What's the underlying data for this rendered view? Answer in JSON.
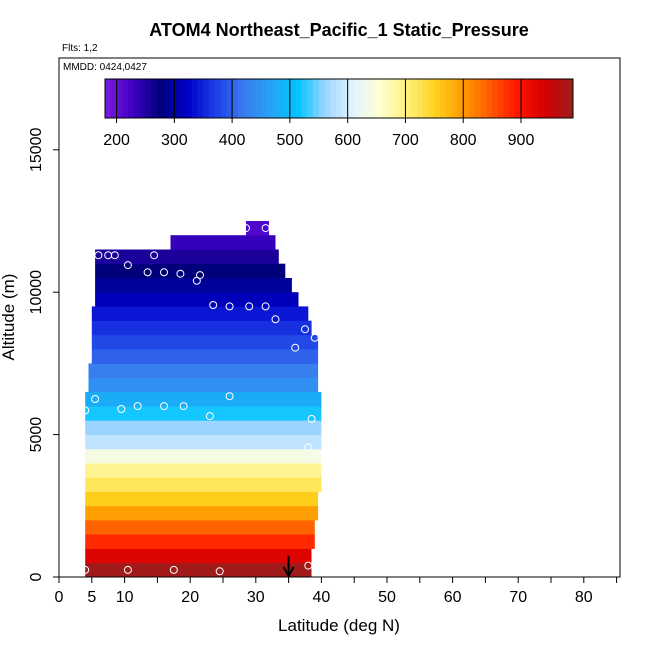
{
  "chart_data": {
    "type": "heatmap",
    "title": "ATOM4 Northeast_Pacific_1 Static_Pressure",
    "flights_note": "Flts: 1,2",
    "date_note": "MMDD: 0424,0427",
    "xlabel": "Latitude (deg N)",
    "ylabel": "Altitude (m)",
    "xlim": [
      0,
      85
    ],
    "ylim": [
      0,
      18000
    ],
    "x_ticks": [
      0,
      5,
      10,
      20,
      30,
      40,
      50,
      60,
      70,
      80
    ],
    "y_ticks": [
      0,
      5000,
      10000,
      15000
    ],
    "y_tick_labels": [
      "0",
      "5000",
      "10000",
      "15000"
    ],
    "colorbar": {
      "range": [
        180,
        990
      ],
      "ticks": [
        200,
        300,
        400,
        500,
        600,
        700,
        800,
        900
      ],
      "colors": [
        "#7a1ce0",
        "#3f00c4",
        "#00007a",
        "#0000c8",
        "#1c3ee6",
        "#3a78ee",
        "#27a2f5",
        "#00c4ff",
        "#9ed4ff",
        "#e2f3ff",
        "#ffffd2",
        "#fff07a",
        "#ffd21e",
        "#ff9a00",
        "#ff5a00",
        "#ff1400",
        "#d20000",
        "#9c1e1e"
      ]
    },
    "bands": [
      {
        "alt": [
          0,
          500
        ],
        "lat": [
          4.0,
          38.5
        ],
        "value": 985
      },
      {
        "alt": [
          500,
          1000
        ],
        "lat": [
          4.0,
          38.5
        ],
        "value": 930
      },
      {
        "alt": [
          1000,
          1500
        ],
        "lat": [
          4.0,
          39.0
        ],
        "value": 880
      },
      {
        "alt": [
          1500,
          2000
        ],
        "lat": [
          4.0,
          39.0
        ],
        "value": 840
      },
      {
        "alt": [
          2000,
          2500
        ],
        "lat": [
          4.0,
          39.5
        ],
        "value": 795
      },
      {
        "alt": [
          2500,
          3000
        ],
        "lat": [
          4.0,
          39.5
        ],
        "value": 755
      },
      {
        "alt": [
          3000,
          3500
        ],
        "lat": [
          4.0,
          40.0
        ],
        "value": 720
      },
      {
        "alt": [
          3500,
          4000
        ],
        "lat": [
          4.0,
          40.0
        ],
        "value": 690
      },
      {
        "alt": [
          4000,
          4500
        ],
        "lat": [
          4.0,
          40.0
        ],
        "value": 640
      },
      {
        "alt": [
          4500,
          5000
        ],
        "lat": [
          4.0,
          40.0
        ],
        "value": 585
      },
      {
        "alt": [
          5000,
          5500
        ],
        "lat": [
          4.0,
          40.0
        ],
        "value": 560
      },
      {
        "alt": [
          5500,
          6000
        ],
        "lat": [
          4.0,
          40.0
        ],
        "value": 520
      },
      {
        "alt": [
          6000,
          6500
        ],
        "lat": [
          4.0,
          40.0
        ],
        "value": 480
      },
      {
        "alt": [
          6500,
          7000
        ],
        "lat": [
          4.5,
          39.5
        ],
        "value": 445
      },
      {
        "alt": [
          7000,
          7500
        ],
        "lat": [
          4.5,
          39.5
        ],
        "value": 425
      },
      {
        "alt": [
          7500,
          8000
        ],
        "lat": [
          5.0,
          39.5
        ],
        "value": 400
      },
      {
        "alt": [
          8000,
          8500
        ],
        "lat": [
          5.0,
          39.5
        ],
        "value": 380
      },
      {
        "alt": [
          8500,
          9000
        ],
        "lat": [
          5.0,
          38.5
        ],
        "value": 360
      },
      {
        "alt": [
          9000,
          9500
        ],
        "lat": [
          5.0,
          38.0
        ],
        "value": 340
      },
      {
        "alt": [
          9500,
          10000
        ],
        "lat": [
          5.5,
          36.5
        ],
        "value": 315
      },
      {
        "alt": [
          10000,
          10500
        ],
        "lat": [
          5.5,
          35.5
        ],
        "value": 295
      },
      {
        "alt": [
          10500,
          11000
        ],
        "lat": [
          5.5,
          34.5
        ],
        "value": 275
      },
      {
        "alt": [
          11000,
          11500
        ],
        "lat": [
          5.5,
          33.5
        ],
        "value": 255
      },
      {
        "alt": [
          11500,
          12000
        ],
        "lat": [
          17.0,
          33.0
        ],
        "value": 235
      },
      {
        "alt": [
          12000,
          12500
        ],
        "lat": [
          28.5,
          32.0
        ],
        "value": 215
      }
    ],
    "points": [
      {
        "lat": 4.0,
        "alt": 250
      },
      {
        "lat": 10.5,
        "alt": 250
      },
      {
        "lat": 17.5,
        "alt": 250
      },
      {
        "lat": 24.5,
        "alt": 200
      },
      {
        "lat": 38.0,
        "alt": 400
      },
      {
        "lat": 4.0,
        "alt": 5850
      },
      {
        "lat": 5.5,
        "alt": 6250
      },
      {
        "lat": 9.5,
        "alt": 5900
      },
      {
        "lat": 12.0,
        "alt": 6000
      },
      {
        "lat": 16.0,
        "alt": 6000
      },
      {
        "lat": 19.0,
        "alt": 6000
      },
      {
        "lat": 23.0,
        "alt": 5650
      },
      {
        "lat": 26.0,
        "alt": 6350
      },
      {
        "lat": 38.5,
        "alt": 5550
      },
      {
        "lat": 38.0,
        "alt": 4550
      },
      {
        "lat": 39.5,
        "alt": 4300
      },
      {
        "lat": 6.0,
        "alt": 11300
      },
      {
        "lat": 7.5,
        "alt": 11300
      },
      {
        "lat": 8.5,
        "alt": 11300
      },
      {
        "lat": 10.5,
        "alt": 10950
      },
      {
        "lat": 13.5,
        "alt": 10700
      },
      {
        "lat": 14.5,
        "alt": 11300
      },
      {
        "lat": 16.0,
        "alt": 10700
      },
      {
        "lat": 18.5,
        "alt": 10650
      },
      {
        "lat": 21.0,
        "alt": 10400
      },
      {
        "lat": 21.5,
        "alt": 10600
      },
      {
        "lat": 23.5,
        "alt": 9550
      },
      {
        "lat": 26.0,
        "alt": 9500
      },
      {
        "lat": 29.0,
        "alt": 9500
      },
      {
        "lat": 31.5,
        "alt": 9500
      },
      {
        "lat": 33.0,
        "alt": 9050
      },
      {
        "lat": 36.0,
        "alt": 8050
      },
      {
        "lat": 37.5,
        "alt": 8700
      },
      {
        "lat": 39.0,
        "alt": 8400
      },
      {
        "lat": 28.5,
        "alt": 12250
      },
      {
        "lat": 31.5,
        "alt": 12250
      }
    ],
    "marker_lat": 35
  }
}
